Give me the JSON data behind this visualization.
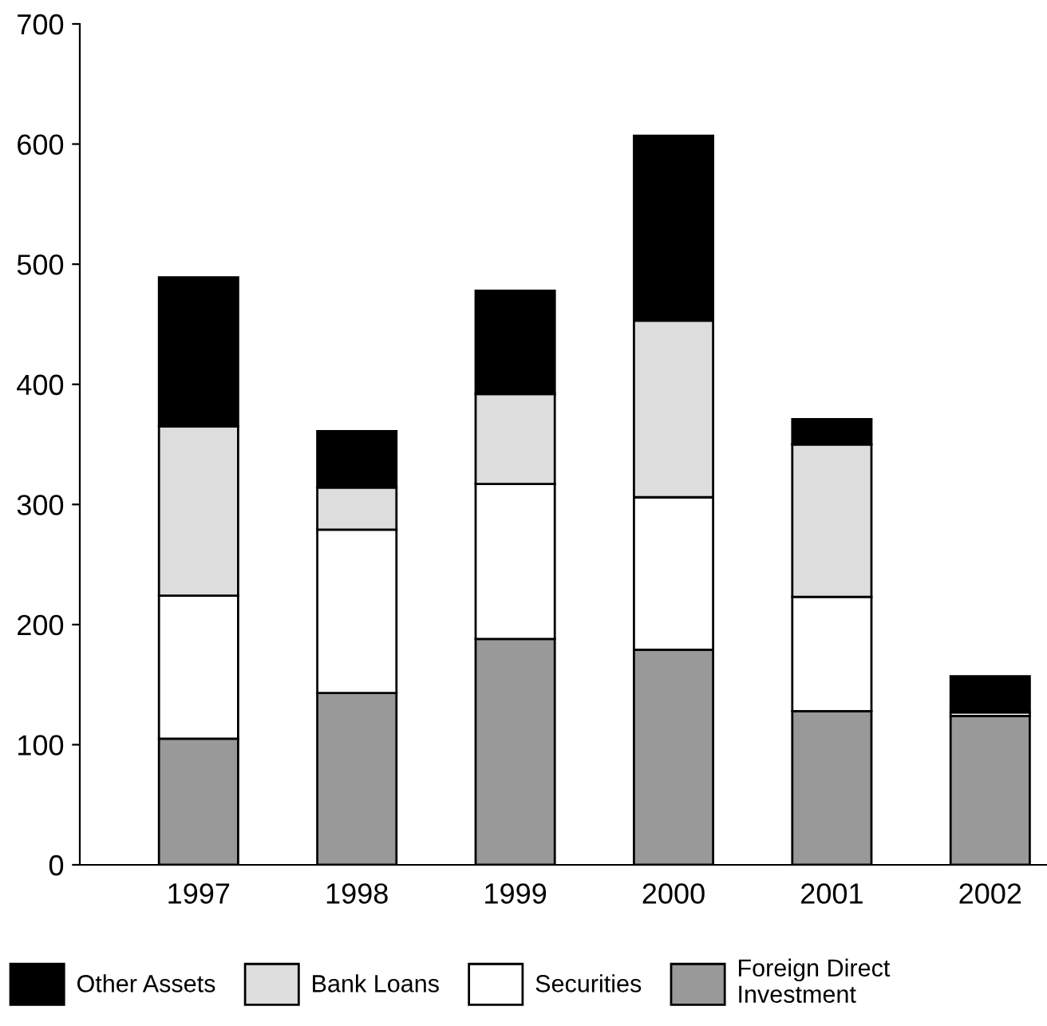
{
  "chart_data": {
    "type": "bar",
    "stacked": true,
    "categories": [
      "1997",
      "1998",
      "1999",
      "2000",
      "2001",
      "2002"
    ],
    "series": [
      {
        "name": "Foreign Direct Investment",
        "color": "#999999",
        "values": [
          105,
          143,
          188,
          179,
          128,
          124
        ]
      },
      {
        "name": "Securities",
        "color": "#ffffff",
        "values": [
          119,
          136,
          129,
          127,
          95,
          3
        ]
      },
      {
        "name": "Bank Loans",
        "color": "#dddddd",
        "values": [
          141,
          35,
          75,
          147,
          127,
          0
        ]
      },
      {
        "name": "Other Assets",
        "color": "#000000",
        "values": [
          124,
          47,
          86,
          154,
          21,
          30
        ]
      }
    ],
    "ylim": [
      0,
      700
    ],
    "yticks": [
      0,
      100,
      200,
      300,
      400,
      500,
      600,
      700
    ],
    "grid": false,
    "legend": "bottom"
  }
}
